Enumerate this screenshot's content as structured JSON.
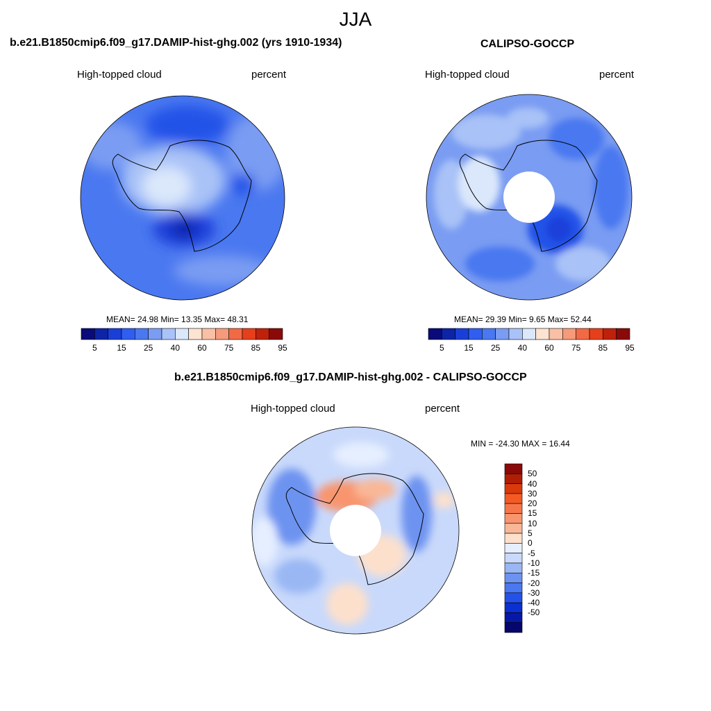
{
  "figure": {
    "title": "JJA"
  },
  "panels": [
    {
      "title": "b.e21.B1850cmip6.f09_g17.DAMIP-hist-ghg.002 (yrs 1910-1934)",
      "left_label": "High-topped cloud",
      "right_label": "percent",
      "stats": "MEAN=  24.98  Min=  13.35  Max=  48.31",
      "colorbar_ticks": [
        "5",
        "15",
        "25",
        "40",
        "60",
        "75",
        "85",
        "95"
      ]
    },
    {
      "title": "CALIPSO-GOCCP",
      "left_label": "High-topped cloud",
      "right_label": "percent",
      "stats": "MEAN=  29.39  Min=   9.65  Max=  52.44",
      "colorbar_ticks": [
        "5",
        "15",
        "25",
        "40",
        "60",
        "75",
        "85",
        "95"
      ]
    },
    {
      "title": "b.e21.B1850cmip6.f09_g17.DAMIP-hist-ghg.002 - CALIPSO-GOCCP",
      "left_label": "High-topped cloud",
      "right_label": "percent",
      "stats": "MIN = -24.30 MAX =  16.44",
      "colorbar_ticks": [
        "50",
        "40",
        "30",
        "20",
        "15",
        "10",
        "5",
        "0",
        "-5",
        "-10",
        "-15",
        "-20",
        "-30",
        "-40",
        "-50"
      ]
    }
  ],
  "colors": {
    "seq_palette": [
      "#0a0a7a",
      "#0d24a8",
      "#1a3fd9",
      "#2f5ef0",
      "#4a78f0",
      "#7a9cf2",
      "#a9c2f7",
      "#dbe8fb",
      "#fde3d2",
      "#f9c0a6",
      "#f59a7a",
      "#f26a45",
      "#e5401b",
      "#c0210a",
      "#8a0a0a"
    ],
    "div_palette": [
      "#8a0a0a",
      "#b01e05",
      "#d83a0c",
      "#f35a24",
      "#f6764a",
      "#f8956e",
      "#f9b797",
      "#fde0cc",
      "#e6efff",
      "#c9d9fb",
      "#9ab7f4",
      "#6d93f0",
      "#4a78f0",
      "#2452e8",
      "#0b2fd0",
      "#0818a6",
      "#06066e"
    ],
    "land_contour": "#000000"
  }
}
